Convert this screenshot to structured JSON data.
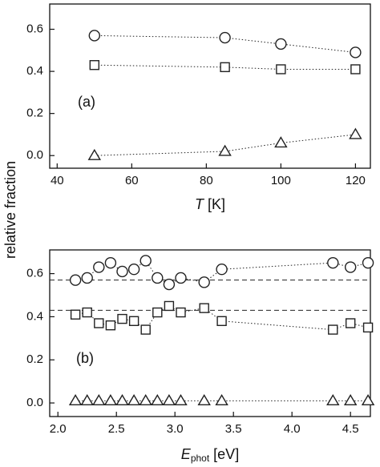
{
  "chart_data": [
    {
      "type": "scatter",
      "ylabel": "relative fraction",
      "annotation": "(a)",
      "xlabel": "T",
      "xlabel_unit": "[K]",
      "x": [
        50,
        85,
        100,
        120
      ],
      "series": [
        {
          "marker": "circle",
          "color": "#222222",
          "values": [
            0.57,
            0.56,
            0.53,
            0.49
          ]
        },
        {
          "marker": "square",
          "color": "#222222",
          "values": [
            0.43,
            0.42,
            0.41,
            0.41
          ]
        },
        {
          "marker": "triangle",
          "color": "#222222",
          "values": [
            0.0,
            0.02,
            0.06,
            0.1
          ]
        }
      ],
      "xlim": [
        38,
        124
      ],
      "ylim": [
        -0.06,
        0.72
      ],
      "xticks": [
        40,
        60,
        80,
        100,
        120
      ],
      "yticks": [
        {
          "value": 0,
          "label": "0.0"
        },
        0.2,
        0.4,
        0.6
      ]
    },
    {
      "type": "scatter",
      "annotation": "(b)",
      "xlabel": "E",
      "xlabel_sub": "phot",
      "xlabel_unit": "[eV]",
      "x": [
        2.15,
        2.25,
        2.35,
        2.45,
        2.55,
        2.65,
        2.75,
        2.85,
        2.95,
        3.05,
        3.25,
        3.4,
        4.35,
        4.5,
        4.65
      ],
      "series": [
        {
          "marker": "circle",
          "color": "#222222",
          "values": [
            0.57,
            0.58,
            0.63,
            0.65,
            0.61,
            0.62,
            0.66,
            0.58,
            0.55,
            0.58,
            0.56,
            0.62,
            0.65,
            0.63,
            0.65
          ]
        },
        {
          "marker": "square",
          "color": "#222222",
          "values": [
            0.41,
            0.42,
            0.37,
            0.36,
            0.39,
            0.38,
            0.34,
            0.42,
            0.45,
            0.42,
            0.44,
            0.38,
            0.34,
            0.37,
            0.35
          ]
        },
        {
          "marker": "triangle",
          "color": "#222222",
          "values": [
            0.01,
            0.01,
            0.01,
            0.01,
            0.01,
            0.01,
            0.01,
            0.01,
            0.01,
            0.01,
            0.01,
            0.01,
            0.01,
            0.01,
            0.01
          ]
        }
      ],
      "hlines": [
        0.57,
        0.43
      ],
      "xlim": [
        1.93,
        4.67
      ],
      "ylim": [
        -0.063,
        0.71
      ],
      "xticks": [
        {
          "value": 2,
          "label": "2.0"
        },
        2.5,
        {
          "value": 3,
          "label": "3.0"
        },
        3.5,
        {
          "value": 4,
          "label": "4.0"
        },
        4.5
      ],
      "yticks": [
        {
          "value": 0,
          "label": "0.0"
        },
        0.2,
        0.4,
        0.6
      ]
    }
  ]
}
